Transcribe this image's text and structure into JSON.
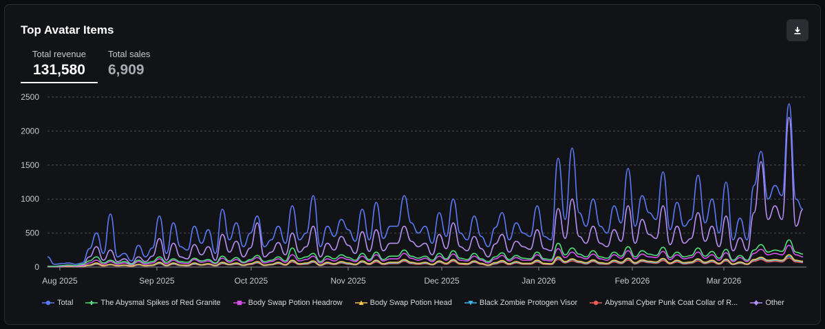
{
  "header": {
    "title": "Top Avatar Items",
    "download_icon": "download-icon"
  },
  "stats": {
    "revenue_label": "Total revenue",
    "revenue_value": "131,580",
    "sales_label": "Total sales",
    "sales_value": "6,909"
  },
  "colors": {
    "Total": "#5b79f5",
    "The Abysmal Spikes of Red Granite": "#4fe07a",
    "Body Swap Potion Headrow": "#d653f0",
    "Body Swap Potion Head": "#f3c653",
    "Black Zombie Protogen Visor": "#3fb6e8",
    "Abysmal Cyber Punk Coat Collar of R...": "#f05a57",
    "Other": "#b890f5"
  },
  "chart_data": {
    "type": "line",
    "title": "Top Avatar Items",
    "ylim": [
      0,
      2500
    ],
    "yticks": [
      "0",
      "500",
      "1000",
      "1500",
      "2000",
      "2500"
    ],
    "x_ticks": [
      "Aug 2025",
      "Sep 2025",
      "Oct 2025",
      "Nov 2025",
      "Dec 2025",
      "Jan 2026",
      "Feb 2026",
      "Mar 2026"
    ],
    "grid": true,
    "legend_position": "bottom",
    "series": [
      {
        "name": "Total",
        "values": [
          150,
          40,
          50,
          60,
          40,
          60,
          270,
          500,
          200,
          780,
          150,
          200,
          90,
          320,
          150,
          280,
          750,
          200,
          650,
          300,
          250,
          600,
          350,
          550,
          200,
          850,
          400,
          650,
          300,
          500,
          750,
          300,
          400,
          600,
          350,
          900,
          400,
          500,
          1050,
          300,
          600,
          450,
          700,
          550,
          380,
          850,
          400,
          950,
          420,
          600,
          600,
          1050,
          650,
          500,
          600,
          350,
          800,
          450,
          1000,
          500,
          400,
          750,
          450,
          300,
          580,
          800,
          400,
          650,
          500,
          450,
          900,
          450,
          400,
          1600,
          700,
          1750,
          800,
          600,
          1000,
          600,
          500,
          900,
          650,
          1450,
          600,
          1050,
          800,
          700,
          1400,
          550,
          950,
          600,
          700,
          1350,
          650,
          1000,
          500,
          1250,
          400,
          720,
          400,
          1200,
          1700,
          1000,
          1200,
          1050,
          2400,
          1000,
          850
        ]
      },
      {
        "name": "The Abysmal Spikes of Red Granite",
        "values": [
          10,
          10,
          20,
          30,
          20,
          40,
          90,
          150,
          60,
          100,
          60,
          80,
          40,
          100,
          60,
          80,
          150,
          70,
          120,
          80,
          70,
          130,
          90,
          110,
          60,
          160,
          90,
          140,
          70,
          110,
          170,
          80,
          100,
          150,
          90,
          280,
          120,
          150,
          200,
          80,
          160,
          120,
          180,
          140,
          100,
          200,
          110,
          220,
          110,
          160,
          160,
          250,
          160,
          130,
          160,
          100,
          200,
          120,
          240,
          130,
          110,
          200,
          120,
          80,
          150,
          210,
          110,
          170,
          130,
          120,
          220,
          120,
          110,
          350,
          180,
          280,
          190,
          150,
          240,
          150,
          130,
          220,
          160,
          300,
          150,
          240,
          190,
          170,
          290,
          140,
          220,
          150,
          170,
          280,
          160,
          230,
          130,
          260,
          100,
          170,
          100,
          250,
          330,
          220,
          250,
          230,
          400,
          220,
          190
        ]
      },
      {
        "name": "Body Swap Potion Headrow",
        "values": [
          5,
          5,
          10,
          20,
          10,
          20,
          60,
          100,
          40,
          80,
          40,
          60,
          30,
          80,
          40,
          60,
          120,
          50,
          100,
          60,
          50,
          110,
          70,
          90,
          50,
          130,
          70,
          110,
          60,
          90,
          140,
          60,
          80,
          120,
          70,
          180,
          90,
          110,
          160,
          60,
          120,
          90,
          140,
          110,
          80,
          160,
          90,
          180,
          90,
          120,
          120,
          200,
          130,
          100,
          130,
          80,
          160,
          100,
          190,
          100,
          90,
          160,
          100,
          60,
          120,
          170,
          90,
          140,
          100,
          100,
          180,
          100,
          90,
          270,
          140,
          220,
          150,
          120,
          190,
          120,
          100,
          180,
          130,
          240,
          120,
          190,
          150,
          140,
          230,
          110,
          180,
          120,
          140,
          220,
          130,
          180,
          100,
          210,
          80,
          140,
          80,
          200,
          260,
          180,
          200,
          180,
          320,
          180,
          150
        ]
      },
      {
        "name": "Body Swap Potion Head",
        "values": [
          5,
          5,
          5,
          10,
          5,
          10,
          30,
          60,
          20,
          40,
          20,
          30,
          15,
          40,
          20,
          30,
          70,
          25,
          60,
          30,
          25,
          60,
          35,
          50,
          25,
          70,
          40,
          60,
          30,
          50,
          80,
          30,
          40,
          70,
          35,
          100,
          50,
          60,
          90,
          30,
          70,
          50,
          80,
          60,
          40,
          90,
          50,
          100,
          50,
          70,
          70,
          110,
          70,
          55,
          70,
          40,
          90,
          55,
          110,
          55,
          50,
          90,
          55,
          30,
          65,
          95,
          50,
          80,
          55,
          55,
          100,
          55,
          50,
          150,
          80,
          120,
          85,
          65,
          105,
          65,
          55,
          100,
          70,
          130,
          65,
          105,
          85,
          75,
          125,
          60,
          100,
          65,
          75,
          120,
          70,
          100,
          55,
          115,
          45,
          75,
          45,
          110,
          145,
          100,
          110,
          100,
          180,
          100,
          85
        ]
      },
      {
        "name": "Black Zombie Protogen Visor",
        "values": [
          5,
          5,
          5,
          10,
          5,
          10,
          25,
          50,
          20,
          35,
          20,
          25,
          15,
          35,
          20,
          25,
          60,
          20,
          50,
          25,
          20,
          50,
          30,
          45,
          20,
          60,
          35,
          50,
          25,
          45,
          70,
          25,
          35,
          60,
          30,
          90,
          45,
          50,
          80,
          25,
          60,
          45,
          70,
          50,
          35,
          80,
          45,
          90,
          45,
          60,
          60,
          100,
          60,
          50,
          60,
          35,
          80,
          50,
          100,
          50,
          45,
          80,
          50,
          25,
          55,
          85,
          45,
          70,
          50,
          50,
          90,
          50,
          45,
          130,
          70,
          110,
          75,
          55,
          95,
          55,
          50,
          90,
          60,
          120,
          55,
          95,
          75,
          65,
          115,
          55,
          90,
          55,
          65,
          110,
          60,
          90,
          50,
          105,
          40,
          65,
          40,
          100,
          130,
          90,
          100,
          90,
          160,
          90,
          75
        ]
      },
      {
        "name": "Abysmal Cyber Punk Coat Collar of R...",
        "values": [
          5,
          5,
          5,
          10,
          5,
          10,
          20,
          40,
          15,
          30,
          15,
          20,
          10,
          30,
          15,
          20,
          50,
          15,
          40,
          20,
          15,
          40,
          25,
          35,
          15,
          50,
          30,
          40,
          20,
          35,
          60,
          20,
          30,
          50,
          25,
          75,
          35,
          40,
          70,
          20,
          50,
          35,
          60,
          40,
          30,
          70,
          35,
          75,
          35,
          50,
          50,
          85,
          50,
          40,
          50,
          30,
          70,
          40,
          85,
          40,
          35,
          70,
          40,
          20,
          45,
          70,
          35,
          60,
          40,
          40,
          75,
          40,
          35,
          110,
          60,
          90,
          65,
          45,
          80,
          45,
          40,
          75,
          50,
          100,
          45,
          80,
          65,
          55,
          95,
          45,
          75,
          45,
          55,
          90,
          50,
          75,
          40,
          90,
          35,
          55,
          35,
          85,
          110,
          75,
          85,
          75,
          135,
          75,
          65
        ]
      },
      {
        "name": "Other",
        "values": [
          10,
          10,
          20,
          20,
          20,
          30,
          150,
          300,
          100,
          250,
          80,
          120,
          50,
          150,
          80,
          160,
          420,
          100,
          350,
          150,
          120,
          330,
          180,
          300,
          100,
          480,
          220,
          380,
          150,
          280,
          650,
          150,
          220,
          360,
          180,
          500,
          220,
          300,
          600,
          150,
          350,
          250,
          450,
          320,
          200,
          520,
          230,
          550,
          240,
          350,
          350,
          600,
          380,
          300,
          350,
          180,
          480,
          270,
          650,
          300,
          240,
          450,
          270,
          150,
          340,
          480,
          220,
          380,
          300,
          260,
          550,
          270,
          240,
          860,
          420,
          1000,
          450,
          350,
          600,
          350,
          300,
          550,
          380,
          900,
          350,
          700,
          480,
          420,
          900,
          330,
          600,
          350,
          420,
          800,
          380,
          600,
          300,
          750,
          240,
          430,
          240,
          800,
          1550,
          700,
          900,
          700,
          2200,
          600,
          850
        ]
      }
    ]
  },
  "legend": [
    {
      "label": "Total",
      "marker": "circle"
    },
    {
      "label": "The Abysmal Spikes of Red Granite",
      "marker": "cross"
    },
    {
      "label": "Body Swap Potion Headrow",
      "marker": "square"
    },
    {
      "label": "Body Swap Potion Head",
      "marker": "triangle"
    },
    {
      "label": "Black Zombie Protogen Visor",
      "marker": "triangle-down"
    },
    {
      "label": "Abysmal Cyber Punk Coat Collar of R...",
      "marker": "circle"
    },
    {
      "label": "Other",
      "marker": "diamond"
    }
  ]
}
